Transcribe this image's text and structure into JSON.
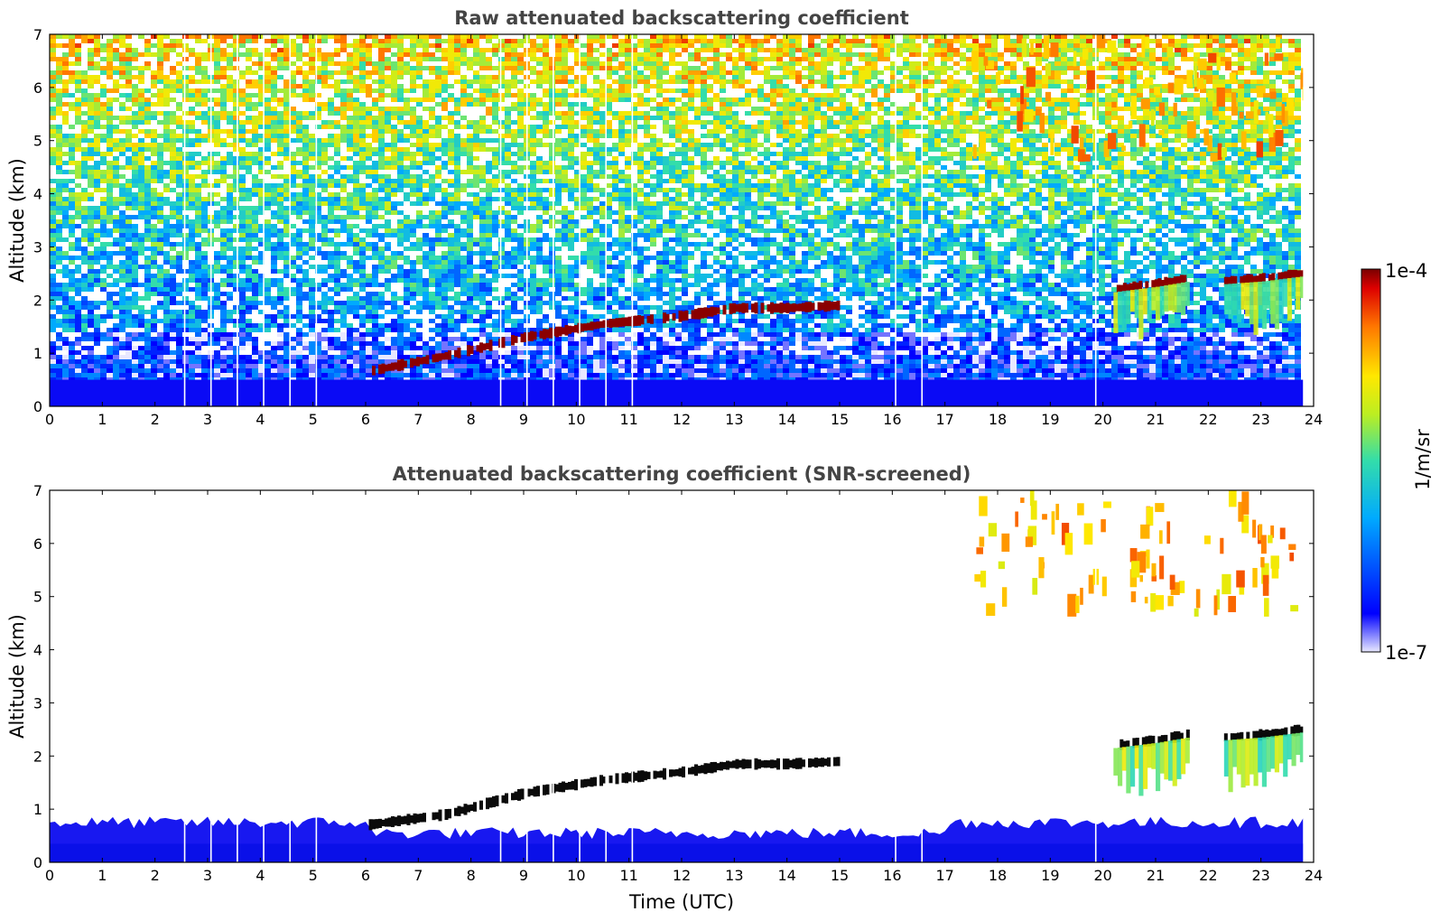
{
  "chart_data": [
    {
      "type": "heatmap",
      "title": "Raw attenuated backscattering coefficient",
      "xlabel": "",
      "ylabel": "Altitude (km)",
      "xlim": [
        0,
        24
      ],
      "ylim": [
        0,
        7
      ],
      "x_ticks": [
        "0",
        "1",
        "2",
        "3",
        "4",
        "5",
        "6",
        "7",
        "8",
        "9",
        "10",
        "11",
        "12",
        "13",
        "14",
        "15",
        "16",
        "17",
        "18",
        "19",
        "20",
        "21",
        "22",
        "23",
        "24"
      ],
      "y_ticks": [
        "0",
        "1",
        "2",
        "3",
        "4",
        "5",
        "6",
        "7"
      ],
      "data_end_time": 23.8,
      "gap_times": [
        2.55,
        3.05,
        3.55,
        4.05,
        4.55,
        5.05,
        8.55,
        9.05,
        9.55,
        10.05,
        10.55,
        11.05,
        16.05,
        16.55,
        19.85
      ],
      "features": [
        {
          "kind": "boundary-layer",
          "time_range": [
            0,
            23.8
          ],
          "altitude_top": 0.5
        },
        {
          "kind": "cloud-layer",
          "points": [
            [
              6.0,
              0.65
            ],
            [
              7.5,
              0.95
            ],
            [
              9.0,
              1.3
            ],
            [
              10.5,
              1.55
            ],
            [
              12.0,
              1.7
            ],
            [
              13.0,
              1.85
            ],
            [
              14.0,
              1.85
            ],
            [
              15.0,
              1.9
            ]
          ]
        },
        {
          "kind": "cloud-layer",
          "points": [
            [
              20.2,
              2.2
            ],
            [
              21.0,
              2.3
            ],
            [
              21.6,
              2.4
            ]
          ]
        },
        {
          "kind": "cloud-layer",
          "points": [
            [
              22.3,
              2.35
            ],
            [
              23.0,
              2.4
            ],
            [
              23.8,
              2.5
            ]
          ]
        },
        {
          "kind": "high-cloud",
          "time_range": [
            17.5,
            23.8
          ],
          "altitude_range": [
            4.6,
            6.8
          ]
        }
      ]
    },
    {
      "type": "heatmap",
      "title": "Attenuated backscattering coefficient (SNR-screened)",
      "xlabel": "Time (UTC)",
      "ylabel": "Altitude (km)",
      "xlim": [
        0,
        24
      ],
      "ylim": [
        0,
        7
      ],
      "x_ticks": [
        "0",
        "1",
        "2",
        "3",
        "4",
        "5",
        "6",
        "7",
        "8",
        "9",
        "10",
        "11",
        "12",
        "13",
        "14",
        "15",
        "16",
        "17",
        "18",
        "19",
        "20",
        "21",
        "22",
        "23",
        "24"
      ],
      "y_ticks": [
        "0",
        "1",
        "2",
        "3",
        "4",
        "5",
        "6",
        "7"
      ],
      "data_end_time": 23.8,
      "gap_times": [
        2.55,
        3.05,
        3.55,
        4.05,
        4.55,
        5.05,
        8.55,
        9.05,
        9.55,
        10.05,
        10.55,
        11.05,
        16.05,
        16.55,
        19.85
      ],
      "features": [
        {
          "kind": "boundary-layer",
          "time_range": [
            0,
            23.8
          ],
          "altitude_top": 0.75
        },
        {
          "kind": "cloud-layer",
          "points": [
            [
              6.0,
              0.7
            ],
            [
              7.5,
              0.9
            ],
            [
              9.0,
              1.3
            ],
            [
              10.5,
              1.55
            ],
            [
              12.0,
              1.7
            ],
            [
              13.0,
              1.85
            ],
            [
              14.0,
              1.85
            ],
            [
              15.0,
              1.9
            ]
          ]
        },
        {
          "kind": "cloud-layer",
          "points": [
            [
              20.2,
              2.2
            ],
            [
              21.0,
              2.3
            ],
            [
              21.6,
              2.4
            ]
          ]
        },
        {
          "kind": "cloud-layer",
          "points": [
            [
              22.3,
              2.35
            ],
            [
              23.0,
              2.4
            ],
            [
              23.8,
              2.5
            ]
          ]
        },
        {
          "kind": "high-cloud",
          "time_range": [
            17.5,
            23.8
          ],
          "altitude_range": [
            4.6,
            6.8
          ]
        }
      ]
    }
  ],
  "colorbar": {
    "label": "1/m/sr",
    "max_label": "1e-4",
    "min_label": "1e-7",
    "scale": "log",
    "colormap": "jet"
  }
}
